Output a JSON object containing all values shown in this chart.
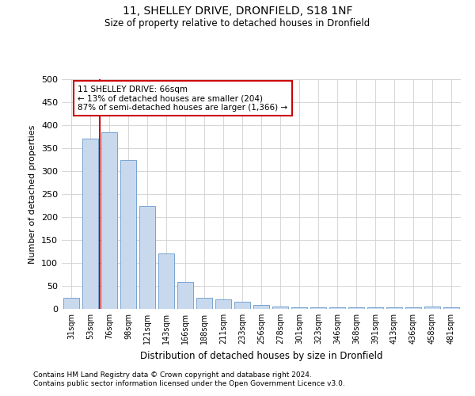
{
  "title1": "11, SHELLEY DRIVE, DRONFIELD, S18 1NF",
  "title2": "Size of property relative to detached houses in Dronfield",
  "xlabel": "Distribution of detached houses by size in Dronfield",
  "ylabel": "Number of detached properties",
  "bar_labels": [
    "31sqm",
    "53sqm",
    "76sqm",
    "98sqm",
    "121sqm",
    "143sqm",
    "166sqm",
    "188sqm",
    "211sqm",
    "233sqm",
    "256sqm",
    "278sqm",
    "301sqm",
    "323sqm",
    "346sqm",
    "368sqm",
    "391sqm",
    "413sqm",
    "436sqm",
    "458sqm",
    "481sqm"
  ],
  "bar_values": [
    25,
    370,
    385,
    325,
    225,
    120,
    58,
    25,
    20,
    15,
    8,
    5,
    3,
    3,
    3,
    3,
    3,
    3,
    3,
    5,
    3
  ],
  "bar_color": "#c8d9ee",
  "bar_edge_color": "#6699cc",
  "grid_color": "#d0d0d0",
  "vline_x": 1.5,
  "vline_color": "#cc0000",
  "annotation_text": "11 SHELLEY DRIVE: 66sqm\n← 13% of detached houses are smaller (204)\n87% of semi-detached houses are larger (1,366) →",
  "annotation_box_color": "#ffffff",
  "annotation_box_edge": "#cc0000",
  "ylim": [
    0,
    500
  ],
  "yticks": [
    0,
    50,
    100,
    150,
    200,
    250,
    300,
    350,
    400,
    450,
    500
  ],
  "footnote1": "Contains HM Land Registry data © Crown copyright and database right 2024.",
  "footnote2": "Contains public sector information licensed under the Open Government Licence v3.0."
}
